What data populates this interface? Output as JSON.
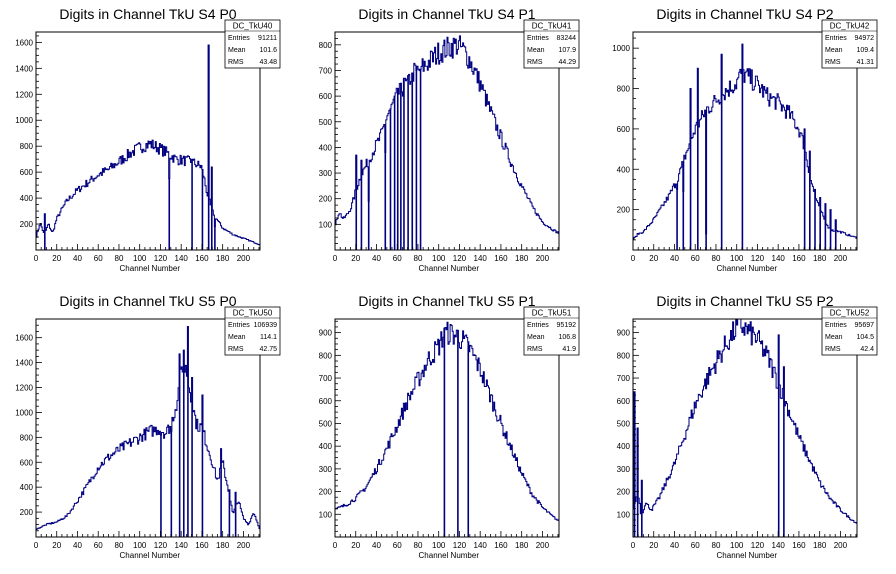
{
  "chart_data": [
    {
      "type": "histogram",
      "title": "Digits in Channel TkU S4 P0",
      "xlabel": "Channel Number",
      "ylabel": "",
      "xlim": [
        0,
        216
      ],
      "ylim": [
        0,
        1680
      ],
      "xticks": [
        0,
        20,
        40,
        60,
        80,
        100,
        120,
        140,
        160,
        180,
        200
      ],
      "yticks": [
        200,
        400,
        600,
        800,
        1000,
        1200,
        1400,
        1600
      ],
      "stats": {
        "name": "DC_TkU40",
        "entries": "91211",
        "mean": "101.6",
        "rms": "43.48",
        "labels": [
          "Entries",
          "Mean",
          "RMS"
        ]
      },
      "profile": [
        [
          0,
          90
        ],
        [
          4,
          210
        ],
        [
          8,
          120
        ],
        [
          12,
          200
        ],
        [
          16,
          130
        ],
        [
          20,
          240
        ],
        [
          24,
          300
        ],
        [
          30,
          380
        ],
        [
          40,
          460
        ],
        [
          50,
          520
        ],
        [
          60,
          580
        ],
        [
          70,
          620
        ],
        [
          80,
          680
        ],
        [
          90,
          740
        ],
        [
          100,
          790
        ],
        [
          110,
          820
        ],
        [
          120,
          780
        ],
        [
          128,
          740
        ],
        [
          135,
          700
        ],
        [
          150,
          680
        ],
        [
          160,
          640
        ],
        [
          165,
          440
        ],
        [
          170,
          300
        ],
        [
          175,
          230
        ],
        [
          180,
          170
        ],
        [
          190,
          120
        ],
        [
          200,
          90
        ],
        [
          210,
          60
        ],
        [
          216,
          40
        ]
      ],
      "spikes": [
        [
          8,
          280
        ],
        [
          128,
          550
        ],
        [
          150,
          700
        ],
        [
          160,
          620
        ],
        [
          166,
          1580
        ],
        [
          169,
          640
        ],
        [
          172,
          180
        ]
      ]
    },
    {
      "type": "histogram",
      "title": "Digits in Channel TkU S4 P1",
      "xlabel": "Channel Number",
      "ylabel": "",
      "xlim": [
        0,
        216
      ],
      "ylim": [
        0,
        850
      ],
      "xticks": [
        0,
        20,
        40,
        60,
        80,
        100,
        120,
        140,
        160,
        180,
        200
      ],
      "yticks": [
        100,
        200,
        300,
        400,
        500,
        600,
        700,
        800
      ],
      "stats": {
        "name": "DC_TkU41",
        "entries": "83244",
        "mean": "107.9",
        "rms": "44.29",
        "labels": [
          "Entries",
          "Mean",
          "RMS"
        ]
      },
      "profile": [
        [
          0,
          90
        ],
        [
          4,
          150
        ],
        [
          8,
          120
        ],
        [
          12,
          140
        ],
        [
          16,
          170
        ],
        [
          20,
          230
        ],
        [
          25,
          290
        ],
        [
          30,
          330
        ],
        [
          35,
          370
        ],
        [
          40,
          410
        ],
        [
          45,
          450
        ],
        [
          50,
          520
        ],
        [
          55,
          560
        ],
        [
          60,
          600
        ],
        [
          65,
          630
        ],
        [
          70,
          650
        ],
        [
          75,
          690
        ],
        [
          80,
          700
        ],
        [
          90,
          730
        ],
        [
          100,
          770
        ],
        [
          110,
          790
        ],
        [
          118,
          800
        ],
        [
          124,
          780
        ],
        [
          130,
          740
        ],
        [
          140,
          650
        ],
        [
          150,
          540
        ],
        [
          160,
          440
        ],
        [
          170,
          340
        ],
        [
          180,
          250
        ],
        [
          190,
          170
        ],
        [
          200,
          110
        ],
        [
          210,
          80
        ],
        [
          216,
          65
        ]
      ],
      "spikes": [
        [
          20,
          370
        ],
        [
          25,
          350
        ],
        [
          32,
          190
        ],
        [
          48,
          380
        ],
        [
          53,
          550
        ],
        [
          57,
          600
        ],
        [
          60,
          630
        ],
        [
          63,
          650
        ],
        [
          66,
          670
        ],
        [
          70,
          680
        ],
        [
          74,
          690
        ],
        [
          78,
          700
        ],
        [
          82,
          705
        ]
      ]
    },
    {
      "type": "histogram",
      "title": "Digits in Channel TkU S4 P2",
      "xlabel": "Channel Number",
      "ylabel": "",
      "xlim": [
        0,
        216
      ],
      "ylim": [
        0,
        1080
      ],
      "xticks": [
        0,
        20,
        40,
        60,
        80,
        100,
        120,
        140,
        160,
        180,
        200
      ],
      "yticks": [
        200,
        400,
        600,
        800,
        1000
      ],
      "stats": {
        "name": "DC_TkU42",
        "entries": "94972",
        "mean": "109.4",
        "rms": "41.31",
        "labels": [
          "Entries",
          "Mean",
          "RMS"
        ]
      },
      "profile": [
        [
          0,
          50
        ],
        [
          5,
          80
        ],
        [
          10,
          90
        ],
        [
          15,
          120
        ],
        [
          20,
          150
        ],
        [
          25,
          190
        ],
        [
          30,
          230
        ],
        [
          35,
          270
        ],
        [
          40,
          320
        ],
        [
          45,
          380
        ],
        [
          50,
          460
        ],
        [
          55,
          530
        ],
        [
          60,
          600
        ],
        [
          65,
          640
        ],
        [
          70,
          690
        ],
        [
          80,
          740
        ],
        [
          90,
          790
        ],
        [
          100,
          830
        ],
        [
          105,
          880
        ],
        [
          110,
          860
        ],
        [
          120,
          820
        ],
        [
          130,
          760
        ],
        [
          140,
          730
        ],
        [
          150,
          680
        ],
        [
          160,
          600
        ],
        [
          165,
          520
        ],
        [
          170,
          380
        ],
        [
          175,
          280
        ],
        [
          180,
          200
        ],
        [
          185,
          150
        ],
        [
          190,
          100
        ],
        [
          200,
          90
        ],
        [
          210,
          70
        ],
        [
          216,
          60
        ]
      ],
      "spikes": [
        [
          42,
          300
        ],
        [
          48,
          290
        ],
        [
          55,
          800
        ],
        [
          62,
          900
        ],
        [
          70,
          80
        ],
        [
          85,
          970
        ],
        [
          105,
          1020
        ],
        [
          165,
          600
        ],
        [
          170,
          490
        ],
        [
          175,
          300
        ],
        [
          180,
          260
        ],
        [
          185,
          230
        ],
        [
          190,
          200
        ],
        [
          195,
          150
        ]
      ]
    },
    {
      "type": "histogram",
      "title": "Digits in Channel TkU S5 P0",
      "xlabel": "Channel Number",
      "ylabel": "",
      "xlim": [
        0,
        216
      ],
      "ylim": [
        0,
        1750
      ],
      "xticks": [
        0,
        20,
        40,
        60,
        80,
        100,
        120,
        140,
        160,
        180,
        200
      ],
      "yticks": [
        200,
        400,
        600,
        800,
        1000,
        1200,
        1400,
        1600
      ],
      "stats": {
        "name": "DC_TkU50",
        "entries": "106939",
        "mean": "114.1",
        "rms": "42.75",
        "labels": [
          "Entries",
          "Mean",
          "RMS"
        ]
      },
      "profile": [
        [
          0,
          60
        ],
        [
          5,
          80
        ],
        [
          10,
          100
        ],
        [
          20,
          120
        ],
        [
          30,
          170
        ],
        [
          40,
          290
        ],
        [
          50,
          420
        ],
        [
          60,
          560
        ],
        [
          70,
          640
        ],
        [
          80,
          700
        ],
        [
          90,
          750
        ],
        [
          100,
          800
        ],
        [
          110,
          850
        ],
        [
          120,
          870
        ],
        [
          125,
          830
        ],
        [
          130,
          900
        ],
        [
          135,
          1050
        ],
        [
          140,
          1300
        ],
        [
          145,
          1350
        ],
        [
          150,
          1100
        ],
        [
          155,
          900
        ],
        [
          160,
          880
        ],
        [
          170,
          600
        ],
        [
          175,
          450
        ],
        [
          180,
          600
        ],
        [
          185,
          400
        ],
        [
          190,
          180
        ],
        [
          195,
          300
        ],
        [
          200,
          150
        ],
        [
          205,
          100
        ],
        [
          210,
          200
        ],
        [
          216,
          60
        ]
      ],
      "spikes": [
        [
          120,
          820
        ],
        [
          130,
          850
        ],
        [
          138,
          1470
        ],
        [
          142,
          1500
        ],
        [
          146,
          1690
        ],
        [
          150,
          1280
        ],
        [
          160,
          1140
        ],
        [
          178,
          710
        ],
        [
          186,
          380
        ],
        [
          192,
          360
        ]
      ]
    },
    {
      "type": "histogram",
      "title": "Digits in Channel TkU S5 P1",
      "xlabel": "Channel Number",
      "ylabel": "",
      "xlim": [
        0,
        216
      ],
      "ylim": [
        0,
        960
      ],
      "xticks": [
        0,
        20,
        40,
        60,
        80,
        100,
        120,
        140,
        160,
        180,
        200
      ],
      "yticks": [
        100,
        200,
        300,
        400,
        500,
        600,
        700,
        800,
        900
      ],
      "stats": {
        "name": "DC_TkU51",
        "entries": "95192",
        "mean": "106.8",
        "rms": "41.9",
        "labels": [
          "Entries",
          "Mean",
          "RMS"
        ]
      },
      "profile": [
        [
          0,
          120
        ],
        [
          10,
          140
        ],
        [
          20,
          170
        ],
        [
          30,
          220
        ],
        [
          40,
          300
        ],
        [
          50,
          390
        ],
        [
          60,
          490
        ],
        [
          70,
          600
        ],
        [
          80,
          690
        ],
        [
          90,
          780
        ],
        [
          100,
          840
        ],
        [
          105,
          890
        ],
        [
          110,
          900
        ],
        [
          120,
          880
        ],
        [
          130,
          830
        ],
        [
          140,
          740
        ],
        [
          150,
          620
        ],
        [
          160,
          500
        ],
        [
          170,
          390
        ],
        [
          180,
          280
        ],
        [
          190,
          190
        ],
        [
          200,
          130
        ],
        [
          210,
          90
        ],
        [
          216,
          70
        ]
      ],
      "spikes": [
        [
          105,
          920
        ],
        [
          118,
          910
        ],
        [
          128,
          860
        ]
      ]
    },
    {
      "type": "histogram",
      "title": "Digits in Channel TkU S5 P2",
      "xlabel": "Channel Number",
      "ylabel": "",
      "xlim": [
        0,
        216
      ],
      "ylim": [
        0,
        960
      ],
      "xticks": [
        0,
        20,
        40,
        60,
        80,
        100,
        120,
        140,
        160,
        180,
        200
      ],
      "yticks": [
        100,
        200,
        300,
        400,
        500,
        600,
        700,
        800,
        900
      ],
      "stats": {
        "name": "DC_TkU52",
        "entries": "95697",
        "mean": "104.5",
        "rms": "42.4",
        "labels": [
          "Entries",
          "Mean",
          "RMS"
        ]
      },
      "profile": [
        [
          0,
          120
        ],
        [
          5,
          200
        ],
        [
          8,
          90
        ],
        [
          12,
          150
        ],
        [
          18,
          120
        ],
        [
          25,
          170
        ],
        [
          30,
          220
        ],
        [
          40,
          320
        ],
        [
          50,
          450
        ],
        [
          60,
          580
        ],
        [
          70,
          680
        ],
        [
          80,
          770
        ],
        [
          90,
          850
        ],
        [
          100,
          920
        ],
        [
          105,
          930
        ],
        [
          110,
          910
        ],
        [
          120,
          870
        ],
        [
          130,
          790
        ],
        [
          140,
          680
        ],
        [
          150,
          560
        ],
        [
          160,
          440
        ],
        [
          170,
          340
        ],
        [
          180,
          240
        ],
        [
          190,
          170
        ],
        [
          200,
          120
        ],
        [
          210,
          80
        ],
        [
          216,
          60
        ]
      ],
      "spikes": [
        [
          1,
          640
        ],
        [
          4,
          480
        ],
        [
          8,
          250
        ],
        [
          140,
          890
        ],
        [
          145,
          750
        ]
      ]
    }
  ]
}
